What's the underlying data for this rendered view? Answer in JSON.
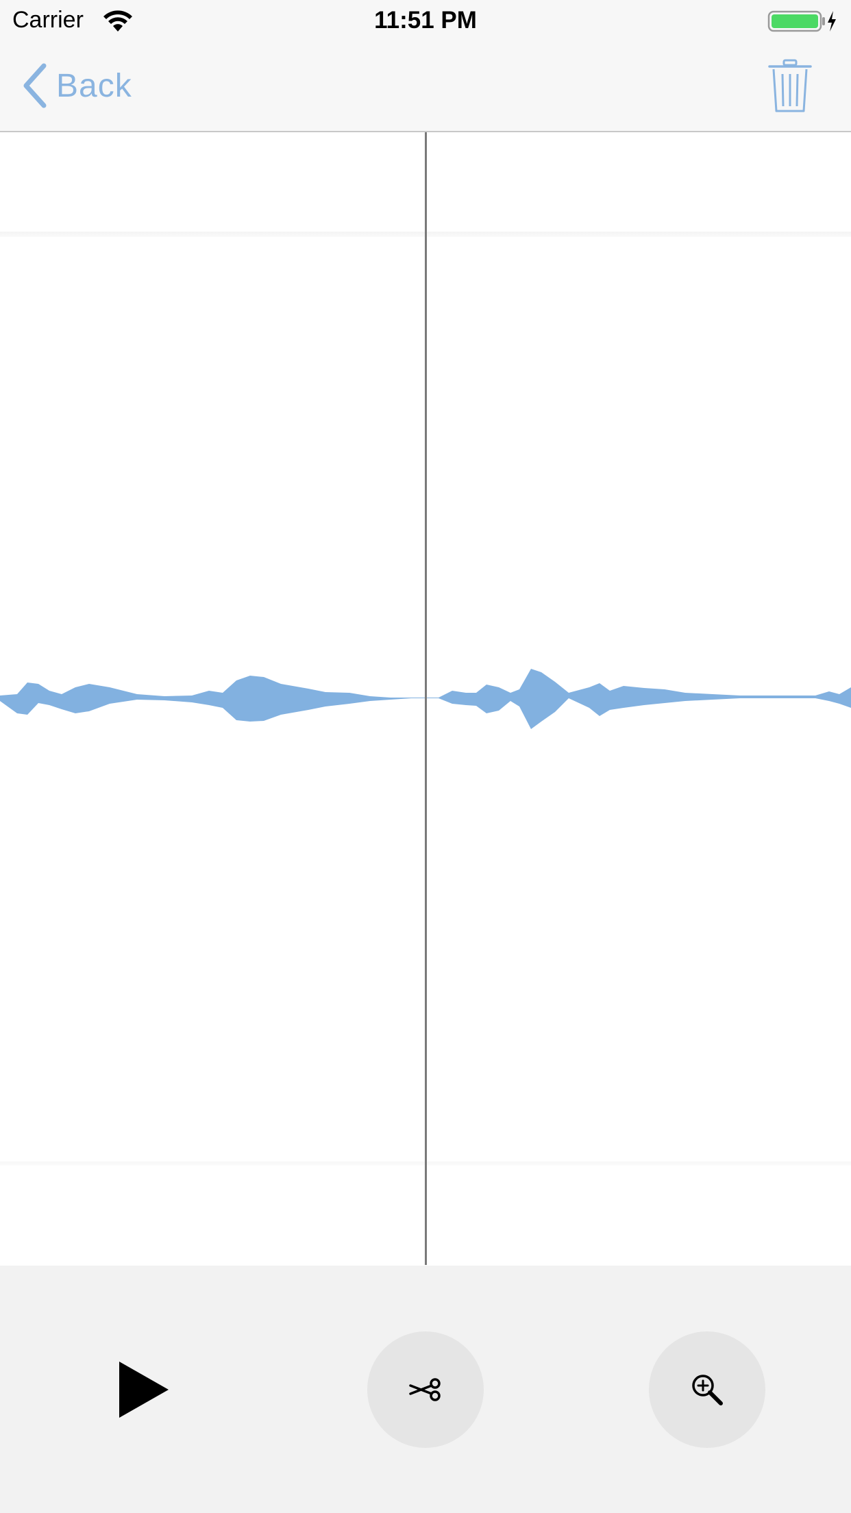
{
  "status_bar": {
    "carrier": "Carrier",
    "time": "11:51 PM",
    "wifi_icon": "wifi-icon",
    "battery_icon": "battery-charging-icon",
    "battery_color": "#4cd964"
  },
  "nav_bar": {
    "back_label": "Back",
    "back_icon": "chevron-left-icon",
    "trash_icon": "trash-icon",
    "accent_color": "#8ab4e0"
  },
  "waveform": {
    "color": "#82b1e0",
    "playhead_color": "#7a7a7a"
  },
  "toolbar": {
    "play_icon": "play-icon",
    "cut_icon": "scissors-icon",
    "zoom_icon": "zoom-in-icon"
  }
}
